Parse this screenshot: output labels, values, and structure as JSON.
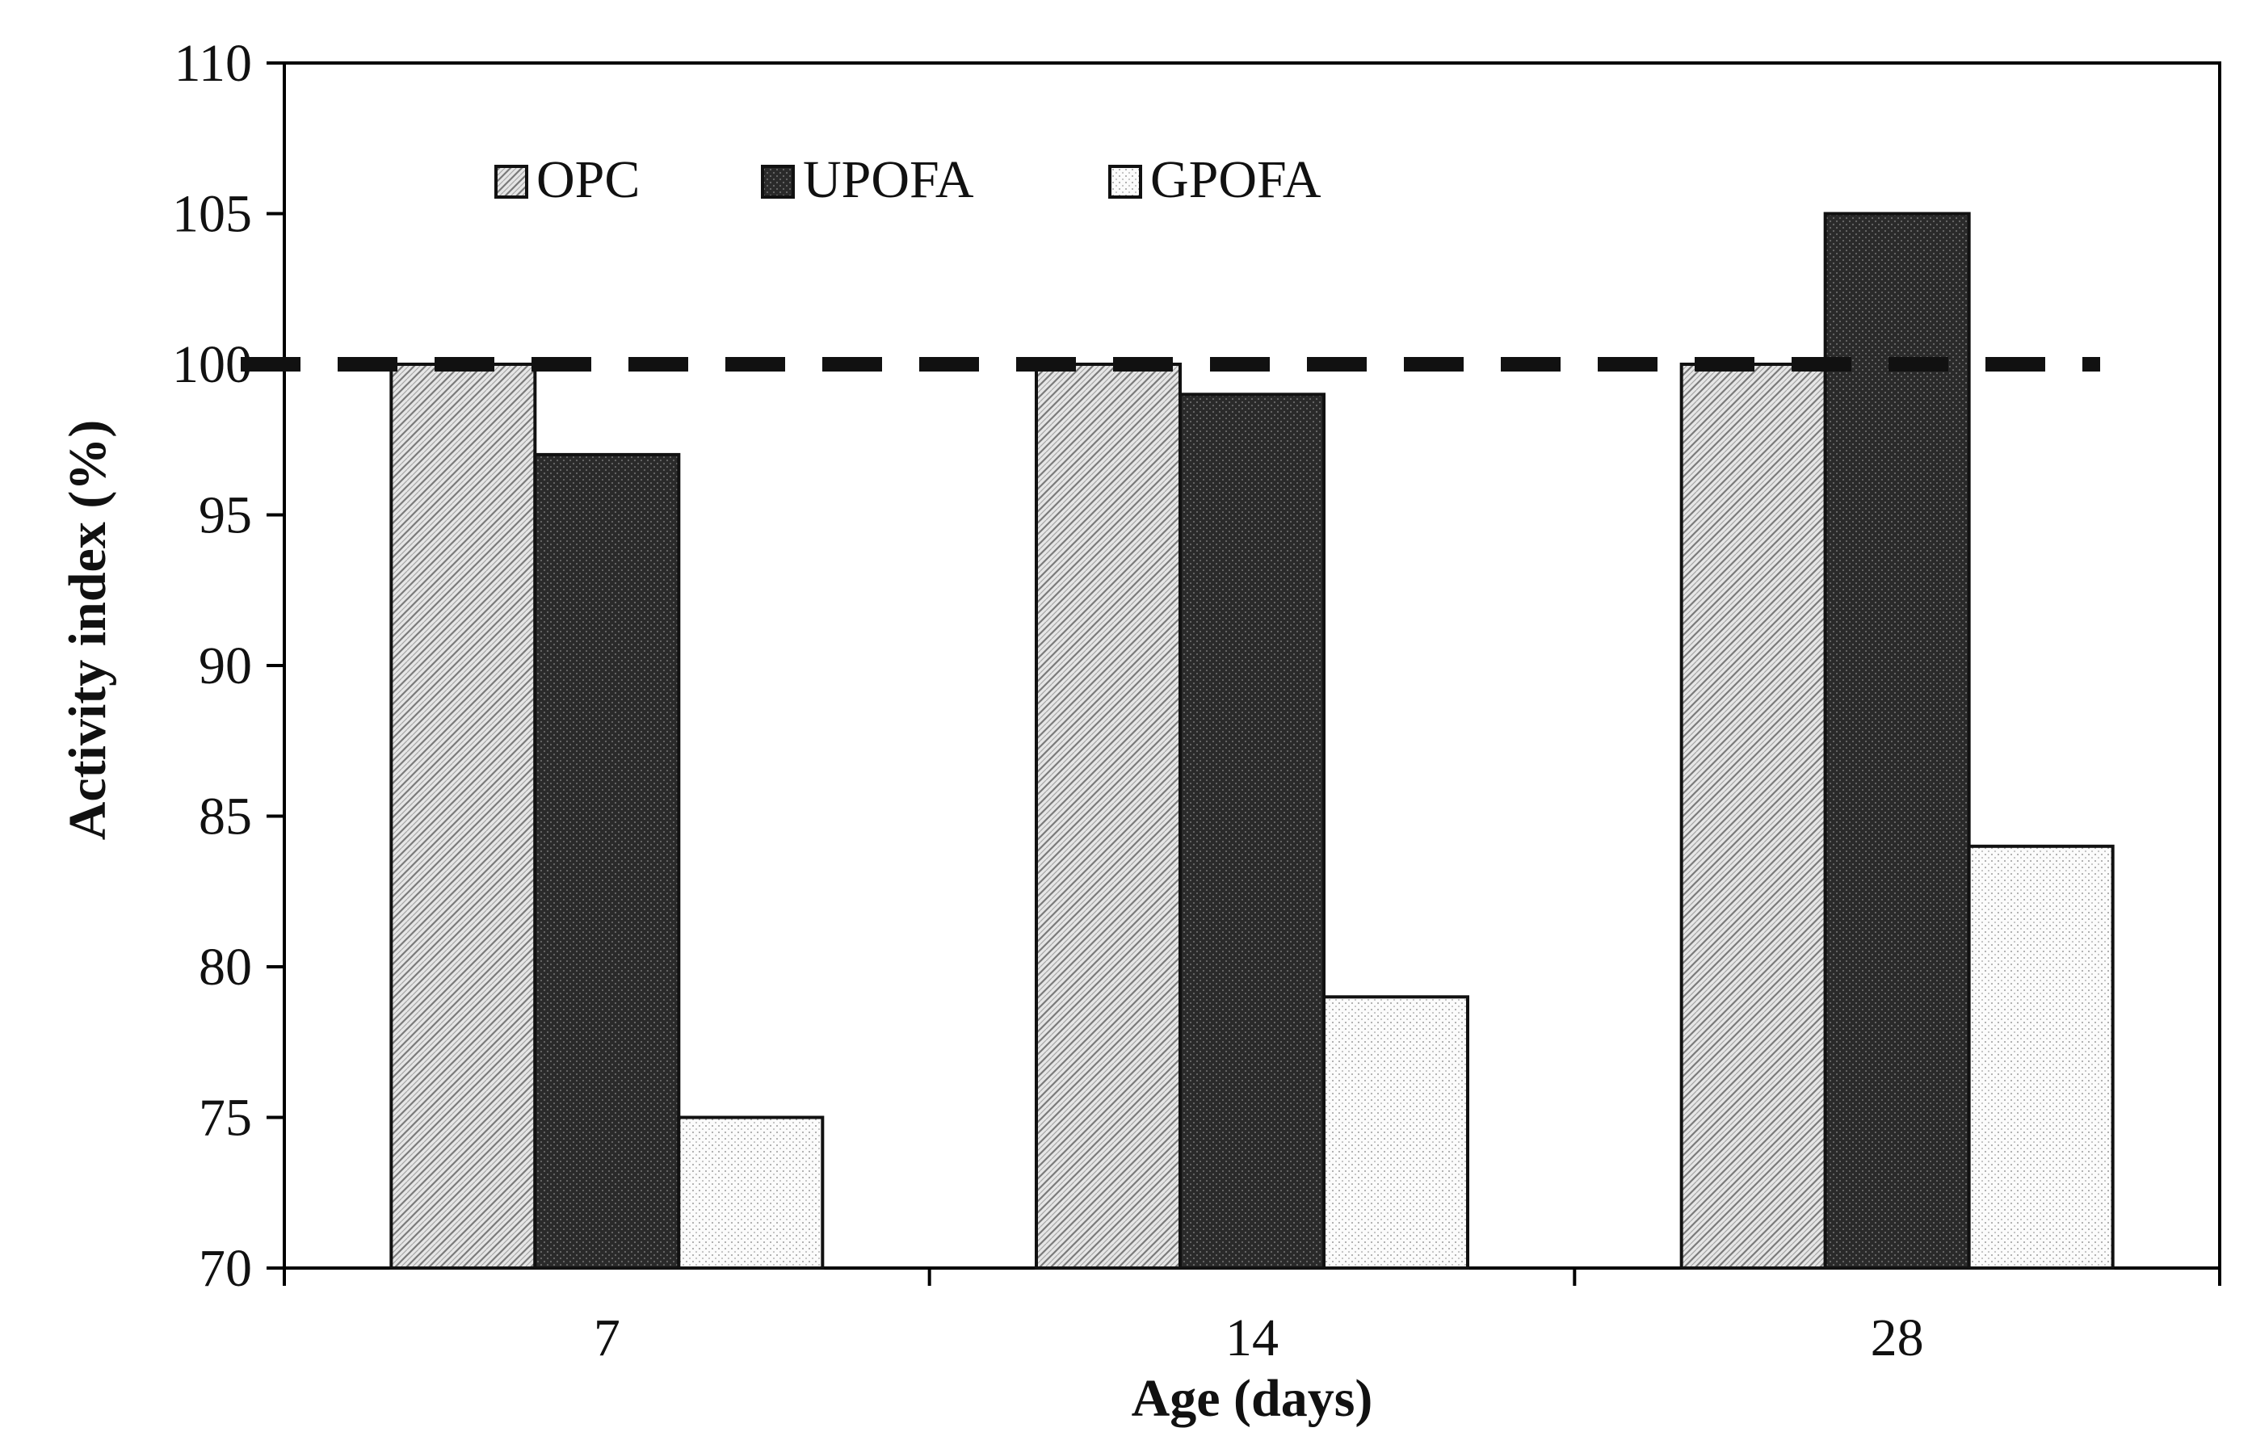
{
  "chart_data": {
    "type": "bar",
    "categories": [
      "7",
      "14",
      "28"
    ],
    "series": [
      {
        "name": "OPC",
        "values": [
          100,
          100,
          100
        ]
      },
      {
        "name": "UPOFA",
        "values": [
          97,
          99,
          105
        ]
      },
      {
        "name": "GPOFA",
        "values": [
          75,
          79,
          84
        ]
      }
    ],
    "xlabel": "Age (days)",
    "ylabel": "Activity index (%)",
    "ylim": [
      70,
      110
    ],
    "yticks": [
      70,
      75,
      80,
      85,
      90,
      95,
      100,
      105,
      110
    ],
    "reference_line": {
      "value": 100,
      "style": "dashed"
    },
    "legend": {
      "placement": "top-left"
    },
    "grid": false,
    "colors": {
      "OPC": "#d4d4d4",
      "UPOFA": "#333333",
      "GPOFA": "#f2f2f2",
      "axis": "#000000",
      "reference_line": "#111111"
    }
  }
}
